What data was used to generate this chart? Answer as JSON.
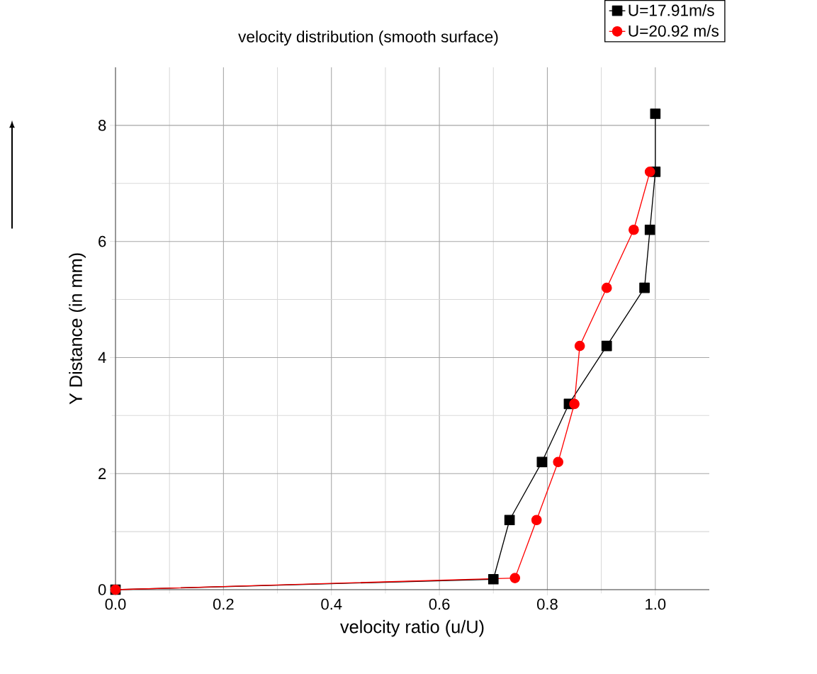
{
  "chart_data": {
    "type": "line",
    "title": "velocity distribution (smooth surface)",
    "xlabel": "velocity ratio (u/U)",
    "ylabel": "Y Distance (in mm)",
    "xlim": [
      0,
      1.1
    ],
    "ylim": [
      0,
      9
    ],
    "xticks": [
      {
        "value": 0,
        "label": "0.0"
      },
      {
        "value": 0.2,
        "label": "0.2"
      },
      {
        "value": 0.4,
        "label": "0.4"
      },
      {
        "value": 0.6,
        "label": "0.6"
      },
      {
        "value": 0.8,
        "label": "0.8"
      },
      {
        "value": 1,
        "label": "1.0"
      }
    ],
    "yticks": [
      0,
      2,
      4,
      6,
      8
    ],
    "grid": true,
    "legend": "top right",
    "line_style": "solid",
    "series": [
      {
        "name": "U=17.91m/s",
        "color": "#000000",
        "marker": "square",
        "x": [
          0,
          0.7,
          0.73,
          0.79,
          0.84,
          0.91,
          0.98,
          0.99,
          1.0,
          1.0
        ],
        "values": [
          0,
          0.18,
          1.2,
          2.2,
          3.2,
          4.2,
          5.2,
          6.2,
          7.2,
          8.2
        ]
      },
      {
        "name": "U=20.92 m/s",
        "color": "#ff0000",
        "marker": "circle",
        "x": [
          0,
          0.74,
          0.78,
          0.82,
          0.85,
          0.86,
          0.91,
          0.96,
          0.99
        ],
        "values": [
          0,
          0.2,
          1.2,
          2.2,
          3.2,
          4.2,
          5.2,
          6.2,
          7.2
        ]
      }
    ]
  }
}
